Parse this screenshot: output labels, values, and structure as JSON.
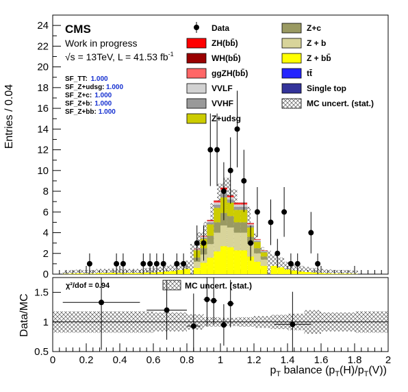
{
  "chart_data": [
    {
      "type": "bar",
      "stacked": true,
      "ylabel": "Entries / 0.04",
      "ylim": [
        0,
        25
      ],
      "xlim": [
        0,
        2
      ],
      "y_ticks": [
        "0",
        "2",
        "4",
        "6",
        "8",
        "10",
        "12",
        "14",
        "16",
        "18",
        "20",
        "22",
        "24"
      ],
      "labels": {
        "experiment": "CMS",
        "status": "Work in progress",
        "lumi": "√s = 13TeV, L = 41.53 fb",
        "lumi_sup": "-1"
      },
      "scale_factors": [
        {
          "name": "SF_TT:",
          "value": "1.000"
        },
        {
          "name": "SF_Z+udsg:",
          "value": "1.000"
        },
        {
          "name": "SF_Z+c:",
          "value": "1.000"
        },
        {
          "name": "SF_Z+b:",
          "value": "1.000"
        },
        {
          "name": "SF_Z+bb:",
          "value": "1.000"
        }
      ],
      "legend": [
        {
          "label": "Data",
          "style": "marker",
          "color": "#000000"
        },
        {
          "label": "Z+c",
          "style": "box",
          "color": "#9a9a62"
        },
        {
          "label": "ZH(bb̄)",
          "style": "box",
          "color": "#ff0000"
        },
        {
          "label": "Z + b",
          "style": "box",
          "color": "#d8d49a"
        },
        {
          "label": "WH(bb̄)",
          "style": "box",
          "color": "#990000"
        },
        {
          "label": "Z + bb̄",
          "style": "box",
          "color": "#ffff00"
        },
        {
          "label": "ggZH(bb̄)",
          "style": "box",
          "color": "#ff6666"
        },
        {
          "label": "tt̄",
          "style": "box",
          "color": "#2424ff"
        },
        {
          "label": "VVLF",
          "style": "box",
          "color": "#d2d2d2"
        },
        {
          "label": "Single top",
          "style": "box",
          "color": "#33339a"
        },
        {
          "label": "VVHF",
          "style": "box",
          "color": "#999999"
        },
        {
          "label": "MC uncert. (stat.)",
          "style": "hatch",
          "color": "#555555"
        },
        {
          "label": "Z+udsg",
          "style": "box",
          "color": "#cccc00"
        }
      ],
      "stack_bin_edges": [
        0.84,
        0.88,
        0.92,
        0.96,
        1.0,
        1.04,
        1.08,
        1.12,
        1.16,
        1.2,
        1.24,
        1.28
      ],
      "series": [
        {
          "name": "Z + bb̄",
          "color": "#ffff00",
          "values": [
            0.6,
            1.1,
            1.6,
            2.2,
            2.7,
            2.6,
            2.3,
            2.3,
            1.7,
            1.2,
            0.8
          ]
        },
        {
          "name": "Z + b",
          "color": "#d8d49a",
          "values": [
            0.6,
            0.8,
            1.3,
            1.8,
            2.0,
            1.9,
            1.7,
            1.7,
            1.2,
            0.8,
            0.6
          ]
        },
        {
          "name": "Z+c",
          "color": "#9a9a62",
          "values": [
            0.4,
            0.6,
            0.8,
            1.0,
            1.2,
            1.1,
            1.0,
            1.0,
            0.7,
            0.5,
            0.3
          ]
        },
        {
          "name": "Z+udsg",
          "color": "#cccc00",
          "values": [
            0.7,
            0.9,
            1.1,
            1.4,
            1.5,
            1.3,
            1.2,
            1.2,
            0.9,
            0.6,
            0.4
          ]
        },
        {
          "name": "VVHF",
          "color": "#999999",
          "values": [
            0.05,
            0.1,
            0.2,
            0.3,
            0.4,
            0.3,
            0.3,
            0.3,
            0.2,
            0.1,
            0.1
          ]
        },
        {
          "name": "VVLF",
          "color": "#d2d2d2",
          "values": [
            0.05,
            0.1,
            0.1,
            0.2,
            0.3,
            0.2,
            0.2,
            0.2,
            0.1,
            0.1,
            0.05
          ]
        },
        {
          "name": "ggZH(bb̄)",
          "color": "#ff6666",
          "values": [
            0.02,
            0.03,
            0.05,
            0.08,
            0.1,
            0.08,
            0.08,
            0.08,
            0.05,
            0.03,
            0.02
          ]
        },
        {
          "name": "ZH(bb̄)",
          "color": "#ff0000",
          "values": [
            0.02,
            0.03,
            0.05,
            0.08,
            0.1,
            0.08,
            0.08,
            0.08,
            0.05,
            0.03,
            0.02
          ]
        },
        {
          "name": "WH(bb̄)",
          "color": "#990000",
          "values": [
            0.01,
            0.02,
            0.03,
            0.04,
            0.05,
            0.04,
            0.04,
            0.04,
            0.03,
            0.02,
            0.01
          ]
        }
      ],
      "mc_total": [
        [
          0.08,
          0.05
        ],
        [
          0.12,
          0.1
        ],
        [
          0.16,
          0.15
        ],
        [
          0.2,
          0.1
        ],
        [
          0.24,
          0.1
        ],
        [
          0.28,
          0.2
        ],
        [
          0.32,
          0.2
        ],
        [
          0.36,
          0.25
        ],
        [
          0.4,
          0.2
        ],
        [
          0.44,
          0.2
        ],
        [
          0.48,
          0.2
        ],
        [
          0.52,
          0.2
        ],
        [
          0.56,
          0.3
        ],
        [
          0.6,
          0.3
        ],
        [
          0.64,
          0.4
        ],
        [
          0.68,
          0.5
        ],
        [
          0.72,
          0.6
        ],
        [
          0.76,
          0.8
        ],
        [
          0.8,
          1.0
        ],
        [
          0.84,
          2.6
        ],
        [
          0.88,
          3.6
        ],
        [
          0.92,
          4.5
        ],
        [
          0.96,
          6.1
        ],
        [
          1.0,
          7.8
        ],
        [
          1.04,
          8.3
        ],
        [
          1.08,
          7.3
        ],
        [
          1.12,
          6.0
        ],
        [
          1.16,
          5.8
        ],
        [
          1.2,
          3.5
        ],
        [
          1.24,
          2.3
        ],
        [
          1.28,
          2.0
        ],
        [
          1.32,
          1.6
        ],
        [
          1.36,
          1.3
        ],
        [
          1.4,
          0.9
        ],
        [
          1.44,
          0.7
        ],
        [
          1.48,
          0.5
        ],
        [
          1.52,
          0.4
        ],
        [
          1.56,
          0.3
        ],
        [
          1.6,
          0.2
        ],
        [
          1.64,
          0.15
        ],
        [
          1.68,
          0.1
        ],
        [
          1.72,
          0.1
        ],
        [
          1.76,
          0.1
        ],
        [
          1.8,
          0.05
        ]
      ],
      "data_points": [
        {
          "x": 0.22,
          "y": 1,
          "err": 1.0
        },
        {
          "x": 0.38,
          "y": 1,
          "err": 1.0
        },
        {
          "x": 0.42,
          "y": 1,
          "err": 1.0
        },
        {
          "x": 0.54,
          "y": 1,
          "err": 1.0
        },
        {
          "x": 0.58,
          "y": 1,
          "err": 1.0
        },
        {
          "x": 0.62,
          "y": 1,
          "err": 1.0
        },
        {
          "x": 0.66,
          "y": 1,
          "err": 1.0
        },
        {
          "x": 0.74,
          "y": 1,
          "err": 1.0
        },
        {
          "x": 0.78,
          "y": 1,
          "err": 1.0
        },
        {
          "x": 0.86,
          "y": 3,
          "err": 1.7
        },
        {
          "x": 0.9,
          "y": 3,
          "err": 1.7
        },
        {
          "x": 0.94,
          "y": 12,
          "err": 3.5
        },
        {
          "x": 0.98,
          "y": 12,
          "err": 3.5
        },
        {
          "x": 1.02,
          "y": 8,
          "err": 2.8
        },
        {
          "x": 1.06,
          "y": 10,
          "err": 3.2
        },
        {
          "x": 1.1,
          "y": 14,
          "err": 3.7
        },
        {
          "x": 1.14,
          "y": 9,
          "err": 3.0
        },
        {
          "x": 1.18,
          "y": 3,
          "err": 1.7
        },
        {
          "x": 1.22,
          "y": 6,
          "err": 2.4
        },
        {
          "x": 1.3,
          "y": 5,
          "err": 2.2
        },
        {
          "x": 1.34,
          "y": 2,
          "err": 1.4
        },
        {
          "x": 1.38,
          "y": 6,
          "err": 2.4
        },
        {
          "x": 1.42,
          "y": 1,
          "err": 1.0
        },
        {
          "x": 1.46,
          "y": 1,
          "err": 1.0
        },
        {
          "x": 1.54,
          "y": 4,
          "err": 2.0
        },
        {
          "x": 1.58,
          "y": 1,
          "err": 1.0
        }
      ]
    },
    {
      "type": "scatter",
      "ylabel": "Data/MC",
      "xlabel": "p",
      "xlabel_parts": [
        "p",
        "T",
        " balance (p",
        "T",
        "(H)/p",
        "T",
        "(V))"
      ],
      "ylim": [
        0.5,
        1.75
      ],
      "xlim": [
        0,
        2
      ],
      "y_ticks": [
        "0.5",
        "1",
        "1.5"
      ],
      "x_ticks": [
        "0",
        "0.2",
        "0.4",
        "0.6",
        "0.8",
        "1",
        "1.2",
        "1.4",
        "1.6",
        "1.8",
        "2"
      ],
      "chi2_label": "χ²/dof = 0.94",
      "legend": [
        {
          "label": "MC uncert. (stat.)",
          "style": "hatch"
        }
      ],
      "points": [
        {
          "x": 0.29,
          "y": 1.33,
          "xerr": 0.23,
          "yerr": 0.8
        },
        {
          "x": 0.68,
          "y": 1.2,
          "xerr": 0.12,
          "yerr": 0.5
        },
        {
          "x": 0.84,
          "y": 0.93,
          "xerr": 0.04,
          "yerr": 0.55
        },
        {
          "x": 0.92,
          "y": 1.38,
          "xerr": 0.02,
          "yerr": 0.45
        },
        {
          "x": 0.96,
          "y": 1.36,
          "xerr": 0.02,
          "yerr": 0.4
        },
        {
          "x": 1.02,
          "y": 0.95,
          "xerr": 0.02,
          "yerr": 0.35
        },
        {
          "x": 1.06,
          "y": 1.31,
          "xerr": 0.02,
          "yerr": 0.4
        },
        {
          "x": 1.43,
          "y": 0.96,
          "xerr": 0.11,
          "yerr": 0.55
        }
      ],
      "band": [
        [
          0.0,
          0.18
        ],
        [
          0.2,
          0.18
        ],
        [
          0.4,
          0.18
        ],
        [
          0.6,
          0.16
        ],
        [
          0.8,
          0.13
        ],
        [
          0.9,
          0.08
        ],
        [
          1.0,
          0.07
        ],
        [
          1.1,
          0.08
        ],
        [
          1.2,
          0.1
        ],
        [
          1.3,
          0.12
        ],
        [
          1.4,
          0.14
        ],
        [
          1.5,
          0.2
        ],
        [
          1.6,
          0.16
        ],
        [
          1.8,
          0.18
        ],
        [
          2.0,
          0.18
        ]
      ]
    }
  ]
}
